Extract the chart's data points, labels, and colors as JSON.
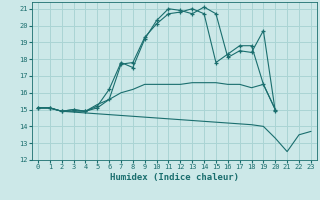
{
  "xlabel": "Humidex (Indice chaleur)",
  "ylabel": "",
  "bg_color": "#cce8e8",
  "grid_color": "#aad4d4",
  "line_color": "#1a6e6e",
  "xlim": [
    -0.5,
    23.5
  ],
  "ylim": [
    12,
    21.4
  ],
  "xticks": [
    0,
    1,
    2,
    3,
    4,
    5,
    6,
    7,
    8,
    9,
    10,
    11,
    12,
    13,
    14,
    15,
    16,
    17,
    18,
    19,
    20,
    21,
    22,
    23
  ],
  "yticks": [
    12,
    13,
    14,
    15,
    16,
    17,
    18,
    19,
    20,
    21
  ],
  "lines": [
    {
      "x": [
        0,
        1,
        2,
        3,
        4,
        5,
        6,
        7,
        8,
        9,
        10,
        11,
        12,
        13,
        14,
        15,
        16,
        17,
        18,
        19,
        20,
        21,
        22,
        23
      ],
      "y": [
        15.1,
        15.1,
        14.9,
        14.85,
        14.8,
        14.75,
        14.7,
        14.65,
        14.6,
        14.55,
        14.5,
        14.45,
        14.4,
        14.35,
        14.3,
        14.25,
        14.2,
        14.15,
        14.1,
        14.0,
        13.3,
        12.5,
        13.5,
        13.7
      ],
      "marker": false
    },
    {
      "x": [
        0,
        1,
        2,
        3,
        4,
        5,
        6,
        7,
        8,
        9,
        10,
        11,
        12,
        13,
        14,
        15,
        16,
        17,
        18,
        19,
        20,
        21,
        22,
        23
      ],
      "y": [
        15.1,
        15.1,
        14.9,
        14.9,
        14.9,
        15.3,
        15.6,
        16.0,
        16.2,
        16.5,
        16.5,
        16.5,
        16.5,
        16.6,
        16.6,
        16.6,
        16.5,
        16.5,
        16.3,
        16.5,
        15.0,
        null,
        null,
        null
      ],
      "marker": false
    },
    {
      "x": [
        0,
        1,
        2,
        3,
        4,
        5,
        6,
        7,
        8,
        9,
        10,
        11,
        12,
        13,
        14,
        15,
        16,
        17,
        18,
        19,
        20
      ],
      "y": [
        15.1,
        15.1,
        14.9,
        15.0,
        14.9,
        15.1,
        15.6,
        17.7,
        17.8,
        19.3,
        20.1,
        20.7,
        20.8,
        21.0,
        20.7,
        17.8,
        18.3,
        18.8,
        18.8,
        16.5,
        15.0
      ],
      "marker": true
    },
    {
      "x": [
        0,
        1,
        2,
        3,
        4,
        5,
        6,
        7,
        8,
        9,
        10,
        11,
        12,
        13,
        14,
        15,
        16,
        17,
        18,
        19,
        20
      ],
      "y": [
        15.1,
        15.1,
        14.9,
        15.0,
        14.9,
        15.2,
        16.2,
        17.8,
        17.5,
        19.2,
        20.3,
        21.0,
        20.9,
        20.7,
        21.1,
        20.7,
        18.1,
        18.5,
        18.4,
        19.7,
        14.9
      ],
      "marker": true
    }
  ]
}
